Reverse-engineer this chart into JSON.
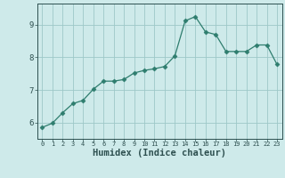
{
  "x": [
    0,
    1,
    2,
    3,
    4,
    5,
    6,
    7,
    8,
    9,
    10,
    11,
    12,
    13,
    14,
    15,
    16,
    17,
    18,
    19,
    20,
    21,
    22,
    23
  ],
  "y": [
    5.85,
    5.98,
    6.3,
    6.58,
    6.68,
    7.02,
    7.27,
    7.27,
    7.32,
    7.52,
    7.6,
    7.65,
    7.72,
    8.05,
    9.12,
    9.25,
    8.78,
    8.7,
    8.18,
    8.18,
    8.18,
    8.38,
    8.38,
    7.78
  ],
  "line_color": "#2e7d6e",
  "marker": "D",
  "markersize": 2.5,
  "bg_color": "#ceeaea",
  "grid_color": "#9dc8c8",
  "xlabel": "Humidex (Indice chaleur)",
  "xlabel_fontsize": 7.5,
  "tick_color": "#2e5050",
  "ylim": [
    5.5,
    9.65
  ],
  "xlim": [
    -0.5,
    23.5
  ],
  "yticks": [
    6,
    7,
    8,
    9
  ],
  "xticks": [
    0,
    1,
    2,
    3,
    4,
    5,
    6,
    7,
    8,
    9,
    10,
    11,
    12,
    13,
    14,
    15,
    16,
    17,
    18,
    19,
    20,
    21,
    22,
    23
  ]
}
